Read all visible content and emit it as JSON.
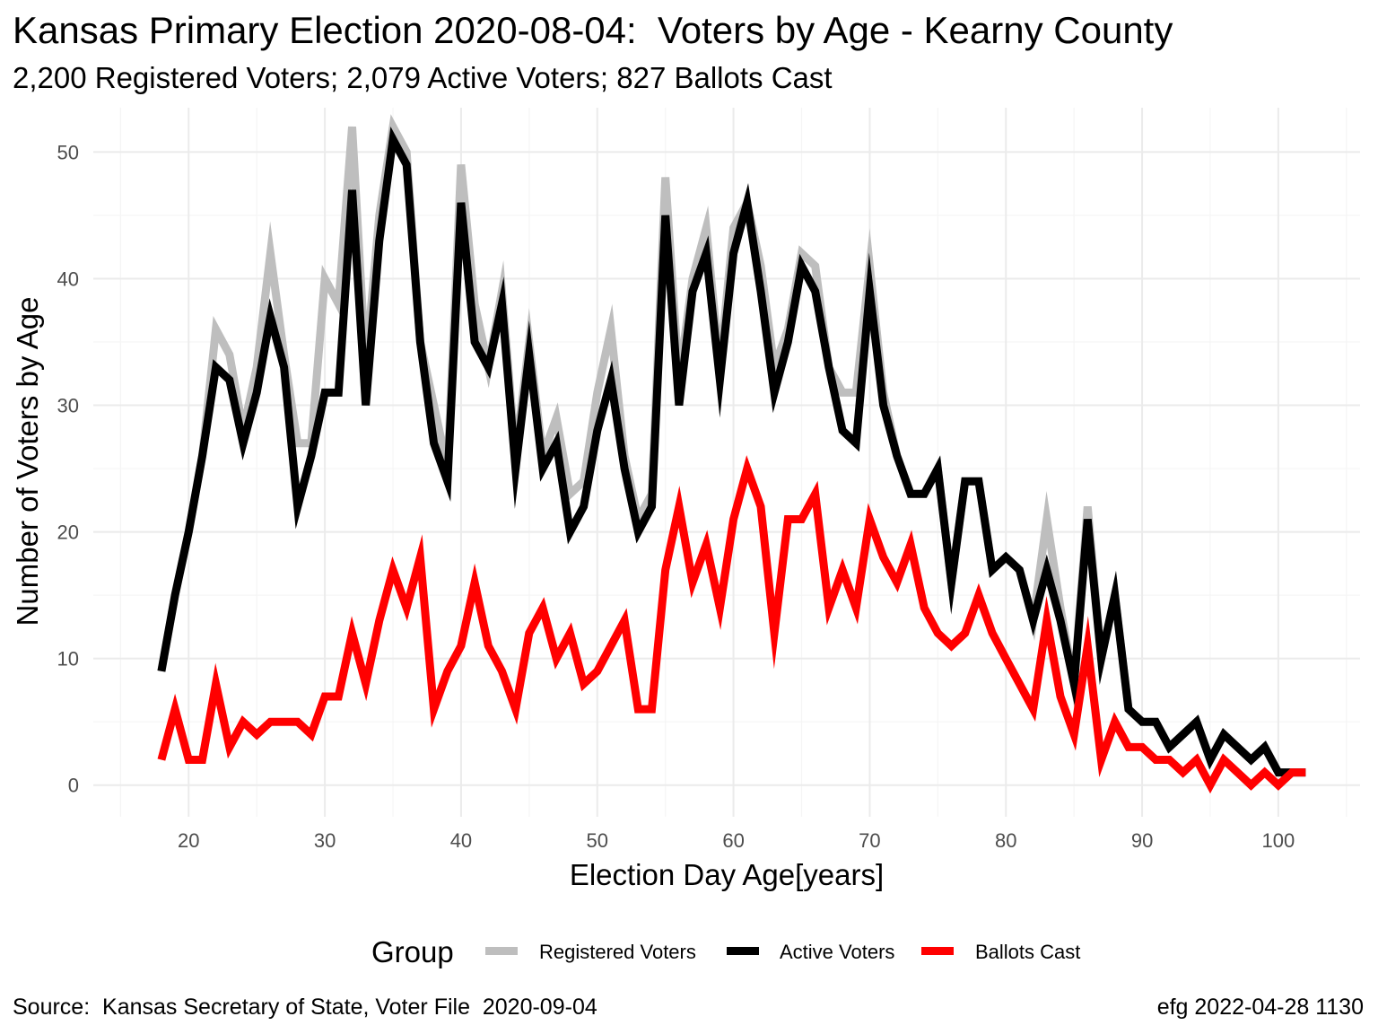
{
  "title": "Kansas Primary Election 2020-08-04:  Voters by Age - Kearny County",
  "subtitle": "2,200 Registered Voters; 2,079 Active Voters; 827 Ballots Cast",
  "caption_left": "Source:  Kansas Secretary of State, Voter File  2020-09-04",
  "caption_right": "efg 2022-04-28 1130",
  "legend": {
    "title": "Group"
  },
  "colors": {
    "registered": "#bebebe",
    "active": "#000000",
    "ballots": "#ff0000",
    "grid_major": "#ebebeb",
    "grid_minor": "#f5f5f5"
  },
  "chart_data": {
    "type": "line",
    "xlabel": "Election Day Age[years]",
    "ylabel": "Number of Voters by Age",
    "xlim": [
      13,
      106
    ],
    "ylim": [
      -2.5,
      53.5
    ],
    "xticks": [
      20,
      30,
      40,
      50,
      60,
      70,
      80,
      90,
      100
    ],
    "yticks": [
      0,
      10,
      20,
      30,
      40,
      50
    ],
    "grid": true,
    "legend_position": "bottom",
    "x": [
      18,
      19,
      20,
      21,
      22,
      23,
      24,
      25,
      26,
      27,
      28,
      29,
      30,
      31,
      32,
      33,
      34,
      35,
      36,
      37,
      38,
      39,
      40,
      41,
      42,
      43,
      44,
      45,
      46,
      47,
      48,
      49,
      50,
      51,
      52,
      53,
      54,
      55,
      56,
      57,
      58,
      59,
      60,
      61,
      62,
      63,
      64,
      65,
      66,
      67,
      68,
      69,
      70,
      71,
      72,
      73,
      74,
      75,
      76,
      77,
      78,
      79,
      80,
      81,
      82,
      83,
      84,
      85,
      86,
      87,
      88,
      89,
      90,
      91,
      92,
      93,
      94,
      95,
      96,
      97,
      98,
      99,
      100,
      101,
      102
    ],
    "series": [
      {
        "name": "Registered Voters",
        "values": [
          9,
          15,
          20,
          26,
          36,
          34,
          28,
          33,
          42,
          34,
          27,
          27,
          40,
          38,
          52,
          33,
          45,
          52,
          50,
          35,
          30,
          25,
          49,
          38,
          33,
          39,
          26,
          35,
          26,
          29,
          23,
          24,
          31,
          36,
          26,
          21,
          23,
          48,
          32,
          40,
          44,
          33,
          44,
          46,
          41,
          33,
          36,
          42,
          41,
          33,
          31,
          31,
          41,
          31,
          26,
          23,
          23,
          25,
          16,
          24,
          24,
          17,
          18,
          17,
          13,
          21,
          14,
          8,
          22,
          10,
          15,
          6,
          5,
          5,
          3,
          4,
          5,
          2,
          4,
          3,
          2,
          3,
          1,
          1,
          1
        ]
      },
      {
        "name": "Active Voters",
        "values": [
          9,
          15,
          20,
          26,
          33,
          32,
          27,
          31,
          37,
          33,
          22,
          26,
          31,
          31,
          47,
          30,
          43,
          51,
          49,
          35,
          27,
          24,
          46,
          35,
          33,
          38,
          25,
          34,
          25,
          27,
          20,
          22,
          28,
          32,
          25,
          20,
          22,
          45,
          30,
          39,
          42,
          32,
          42,
          46,
          39,
          31,
          35,
          41,
          39,
          33,
          28,
          27,
          39,
          30,
          26,
          23,
          23,
          25,
          16,
          24,
          24,
          17,
          18,
          17,
          13,
          17,
          13,
          8,
          21,
          10,
          15,
          6,
          5,
          5,
          3,
          4,
          5,
          2,
          4,
          3,
          2,
          3,
          1,
          1,
          1
        ]
      },
      {
        "name": "Ballots Cast",
        "values": [
          2,
          6,
          2,
          2,
          8,
          3,
          5,
          4,
          5,
          5,
          5,
          4,
          7,
          7,
          12,
          8,
          13,
          17,
          14,
          18,
          6,
          9,
          11,
          16,
          11,
          9,
          6,
          12,
          14,
          10,
          12,
          8,
          9,
          11,
          13,
          6,
          6,
          17,
          22,
          16,
          19,
          14,
          21,
          25,
          22,
          12,
          21,
          21,
          23,
          14,
          17,
          14,
          21,
          18,
          16,
          19,
          14,
          12,
          11,
          12,
          15,
          12,
          10,
          8,
          6,
          13,
          7,
          4,
          11,
          2,
          5,
          3,
          3,
          2,
          2,
          1,
          2,
          0,
          2,
          1,
          0,
          1,
          0,
          1,
          1
        ]
      }
    ]
  }
}
